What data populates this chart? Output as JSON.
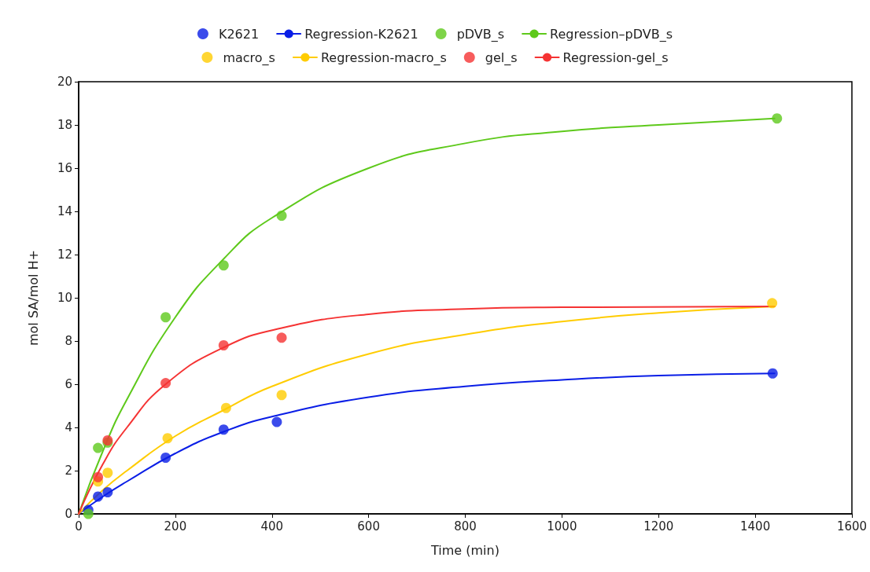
{
  "chart_data": {
    "type": "scatter",
    "xlabel": "Time (min)",
    "ylabel": "mol SA/mol H+",
    "xlim": [
      0,
      1600
    ],
    "xticks": [
      0,
      200,
      400,
      600,
      800,
      1000,
      1200,
      1400,
      1600
    ],
    "ylim": [
      0,
      20
    ],
    "yticks": [
      0,
      2,
      4,
      6,
      8,
      10,
      12,
      14,
      16,
      18,
      20
    ],
    "grid": false,
    "legend": "top",
    "marker": "circle",
    "series": [
      {
        "name": "K2621",
        "color": "#0a1ee6",
        "x": [
          20,
          40,
          60,
          180,
          300,
          410,
          1436
        ],
        "values": [
          0.18,
          0.8,
          1.0,
          2.6,
          3.9,
          4.25,
          6.5
        ]
      },
      {
        "name": "Regression-K2621",
        "type": "line",
        "marker": "none",
        "color": "#0a1ee6",
        "x": [
          0,
          50,
          100,
          200,
          300,
          400,
          600,
          800,
          1000,
          1200,
          1440
        ],
        "values": [
          0,
          0.8,
          1.5,
          2.8,
          3.8,
          4.5,
          5.4,
          5.9,
          6.2,
          6.4,
          6.5
        ]
      },
      {
        "name": "pDVB_s",
        "color": "#5ec91b",
        "x": [
          20,
          40,
          60,
          180,
          300,
          420,
          1445
        ],
        "values": [
          0,
          3.05,
          3.3,
          9.1,
          11.5,
          13.8,
          18.3
        ]
      },
      {
        "name": "Regression–pDVB_s",
        "type": "line",
        "marker": "none",
        "color": "#5ec91b",
        "x": [
          0,
          50,
          100,
          200,
          300,
          400,
          600,
          800,
          1000,
          1200,
          1440
        ],
        "values": [
          0,
          2.9,
          5.3,
          9.1,
          11.8,
          13.7,
          16.0,
          17.15,
          17.7,
          18.0,
          18.3
        ]
      },
      {
        "name": "macro_s",
        "color": "#ffcc00",
        "x": [
          40,
          60,
          184,
          305,
          420,
          1435
        ],
        "values": [
          1.5,
          1.9,
          3.5,
          4.9,
          5.5,
          9.75
        ]
      },
      {
        "name": "Regression-macro_s",
        "type": "line",
        "marker": "none",
        "color": "#ffcc00",
        "x": [
          0,
          50,
          100,
          200,
          300,
          400,
          600,
          800,
          1000,
          1200,
          1440
        ],
        "values": [
          0,
          1.1,
          2.0,
          3.6,
          4.8,
          5.9,
          7.4,
          8.3,
          8.9,
          9.3,
          9.6
        ]
      },
      {
        "name": "gel_s",
        "color": "#f53333",
        "x": [
          40,
          60,
          180,
          300,
          420
        ],
        "values": [
          1.7,
          3.4,
          6.05,
          7.8,
          8.15
        ]
      },
      {
        "name": "Regression-gel_s",
        "type": "line",
        "marker": "none",
        "color": "#f53333",
        "x": [
          0,
          50,
          100,
          180,
          300,
          420,
          600,
          800,
          1000,
          1440
        ],
        "values": [
          0,
          2.3,
          4.0,
          6.0,
          7.7,
          8.6,
          9.24,
          9.48,
          9.56,
          9.6
        ]
      }
    ]
  }
}
